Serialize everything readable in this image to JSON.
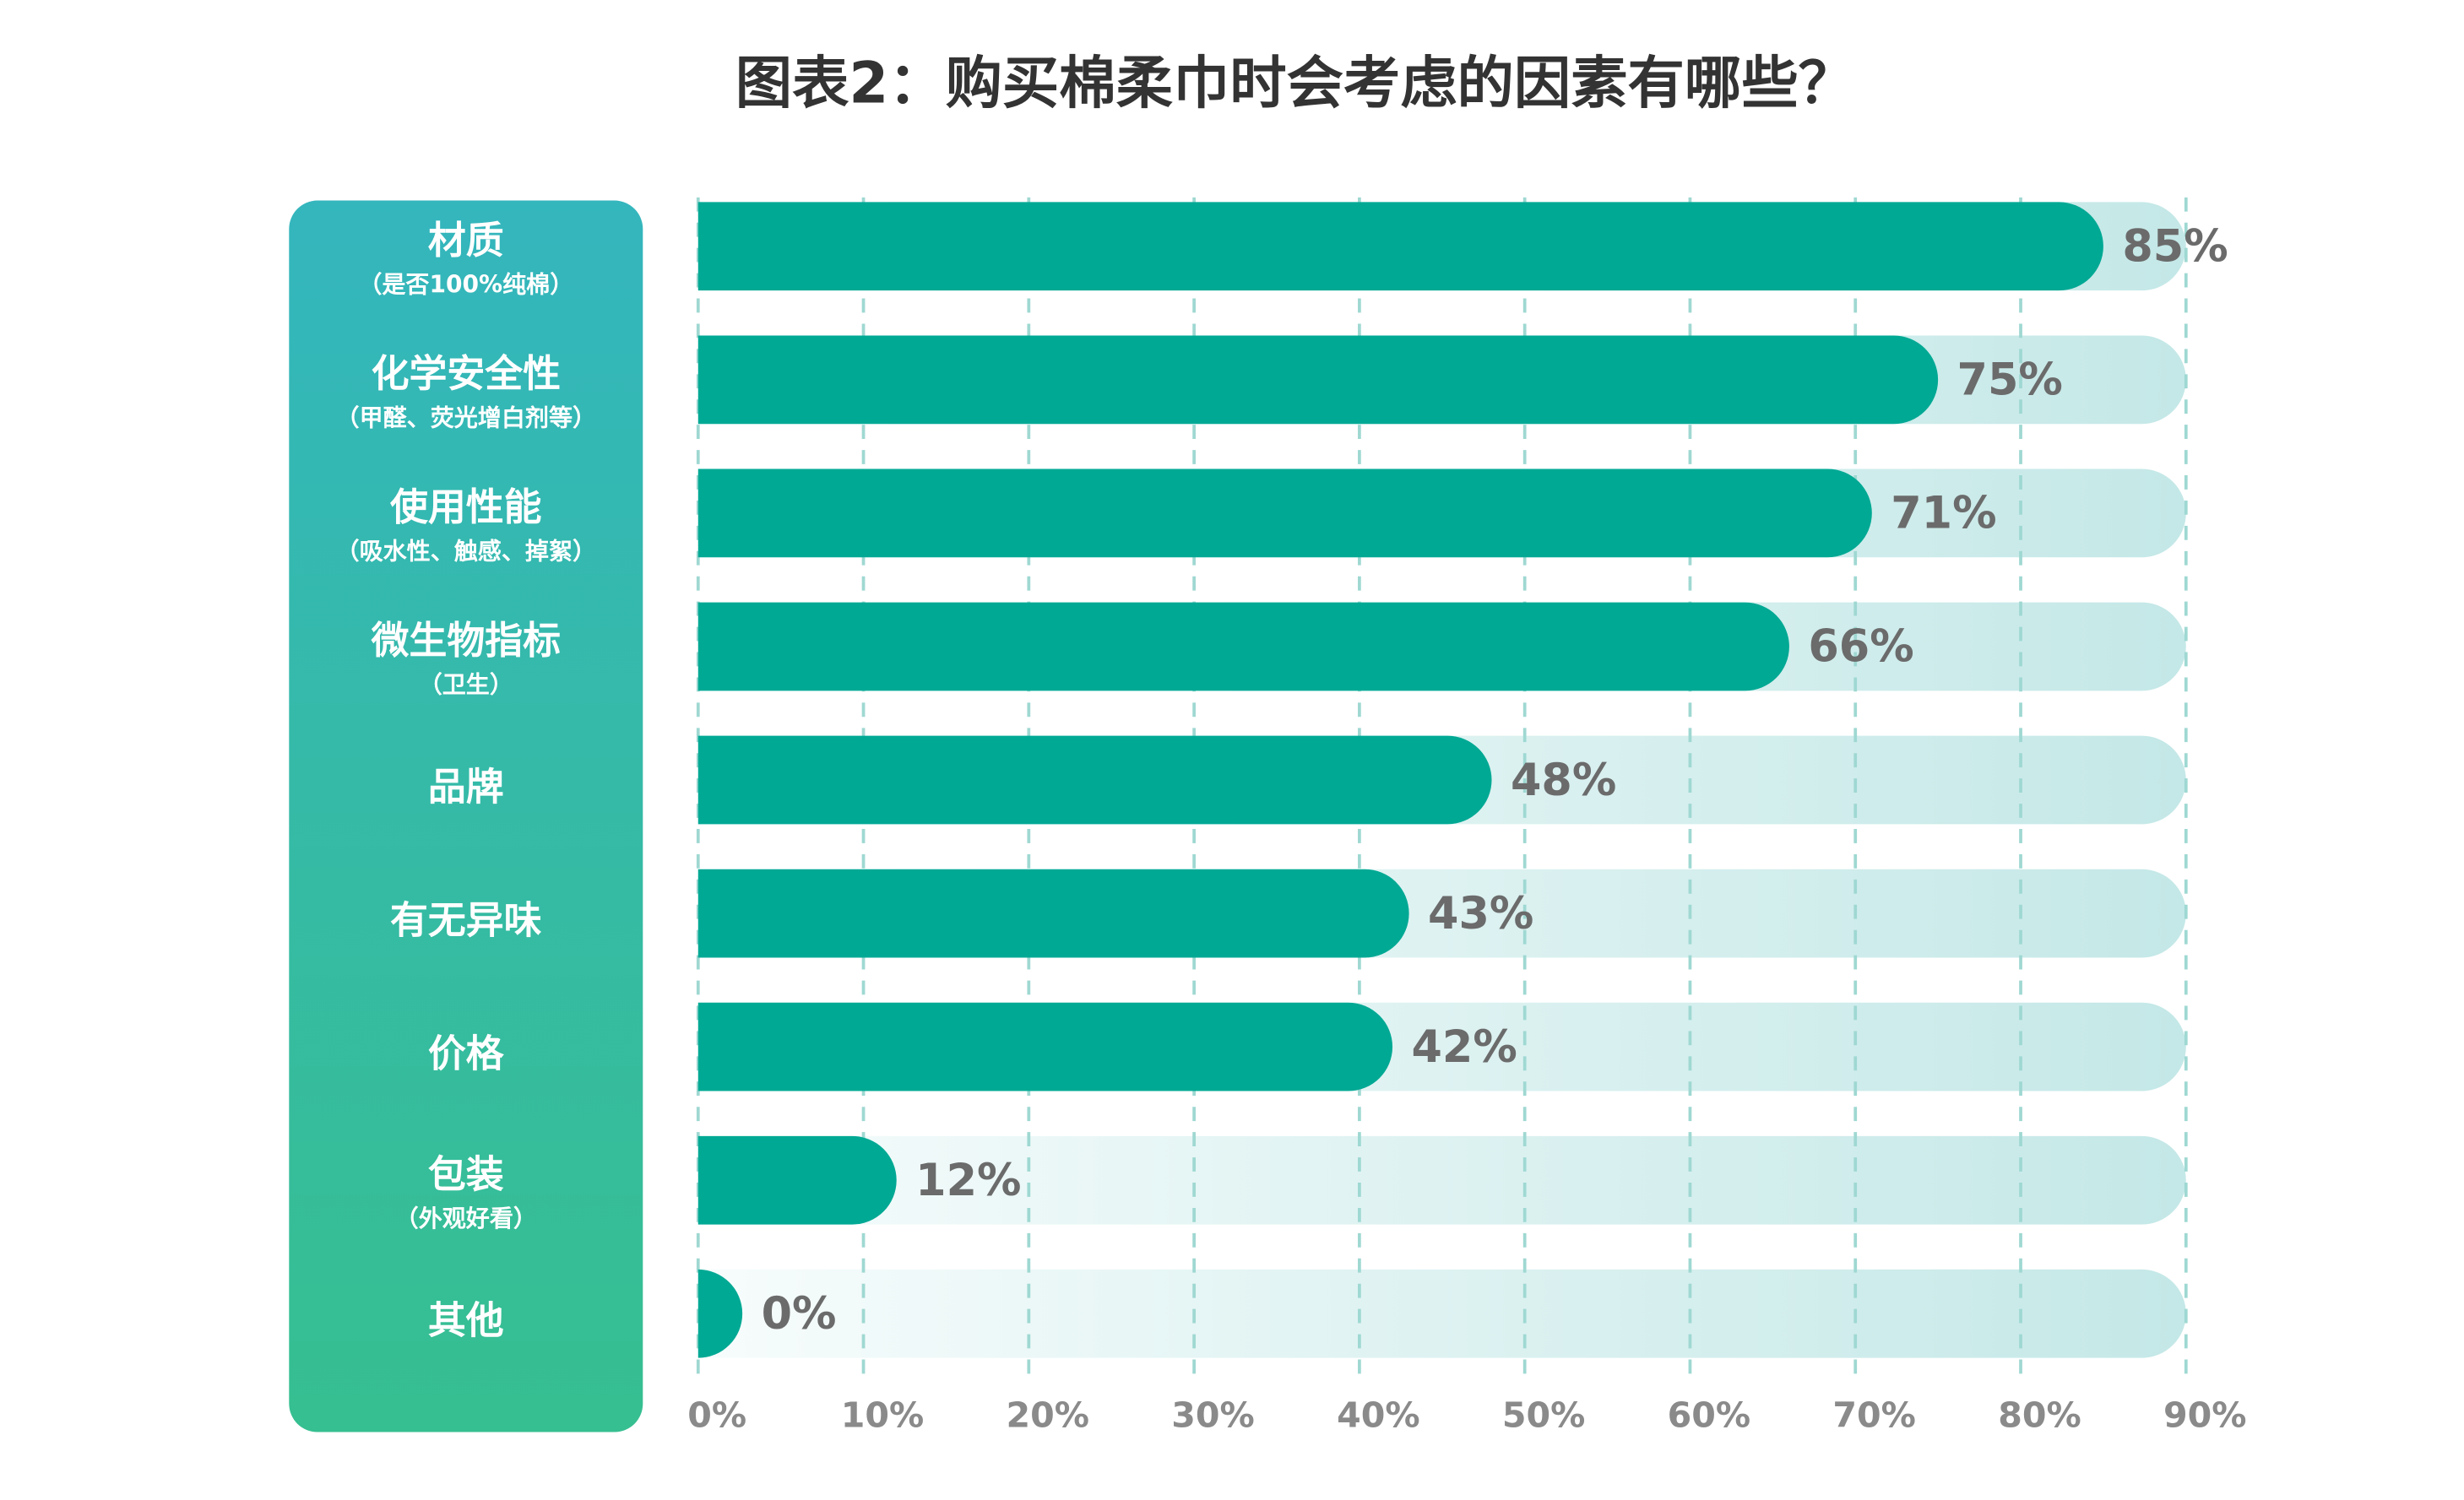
{
  "chart_data": {
    "type": "bar",
    "title": "图表2：购买棉柔巾时会考虑的因素有哪些？",
    "categories": [
      "材质",
      "化学安全性",
      "使用性能",
      "微生物指标",
      "品牌",
      "有无异味",
      "价格",
      "包装",
      "其他"
    ],
    "sublabels": [
      "（是否100%纯棉）",
      "（甲醛、荧光增白剂等）",
      "（吸水性、触感、掉絮）",
      "（卫生）",
      null,
      null,
      null,
      "（外观好看）",
      null
    ],
    "values": [
      85,
      75,
      71,
      66,
      48,
      43,
      42,
      12,
      0
    ],
    "value_labels": [
      "85%",
      "75%",
      "71%",
      "66%",
      "48%",
      "43%",
      "42%",
      "12%",
      "0%"
    ],
    "color": "#00a994",
    "xlim": [
      0,
      90
    ],
    "xticks": [
      {
        "value": 0,
        "label": "0%"
      },
      {
        "value": 10,
        "label": "10%"
      },
      {
        "value": 20,
        "label": "20%"
      },
      {
        "value": 30,
        "label": "30%"
      },
      {
        "value": 40,
        "label": "40%"
      },
      {
        "value": 50,
        "label": "50%"
      },
      {
        "value": 60,
        "label": "60%"
      },
      {
        "value": 70,
        "label": "70%"
      },
      {
        "value": 80,
        "label": "80%"
      },
      {
        "value": 90,
        "label": "90%"
      }
    ],
    "grid": true
  }
}
